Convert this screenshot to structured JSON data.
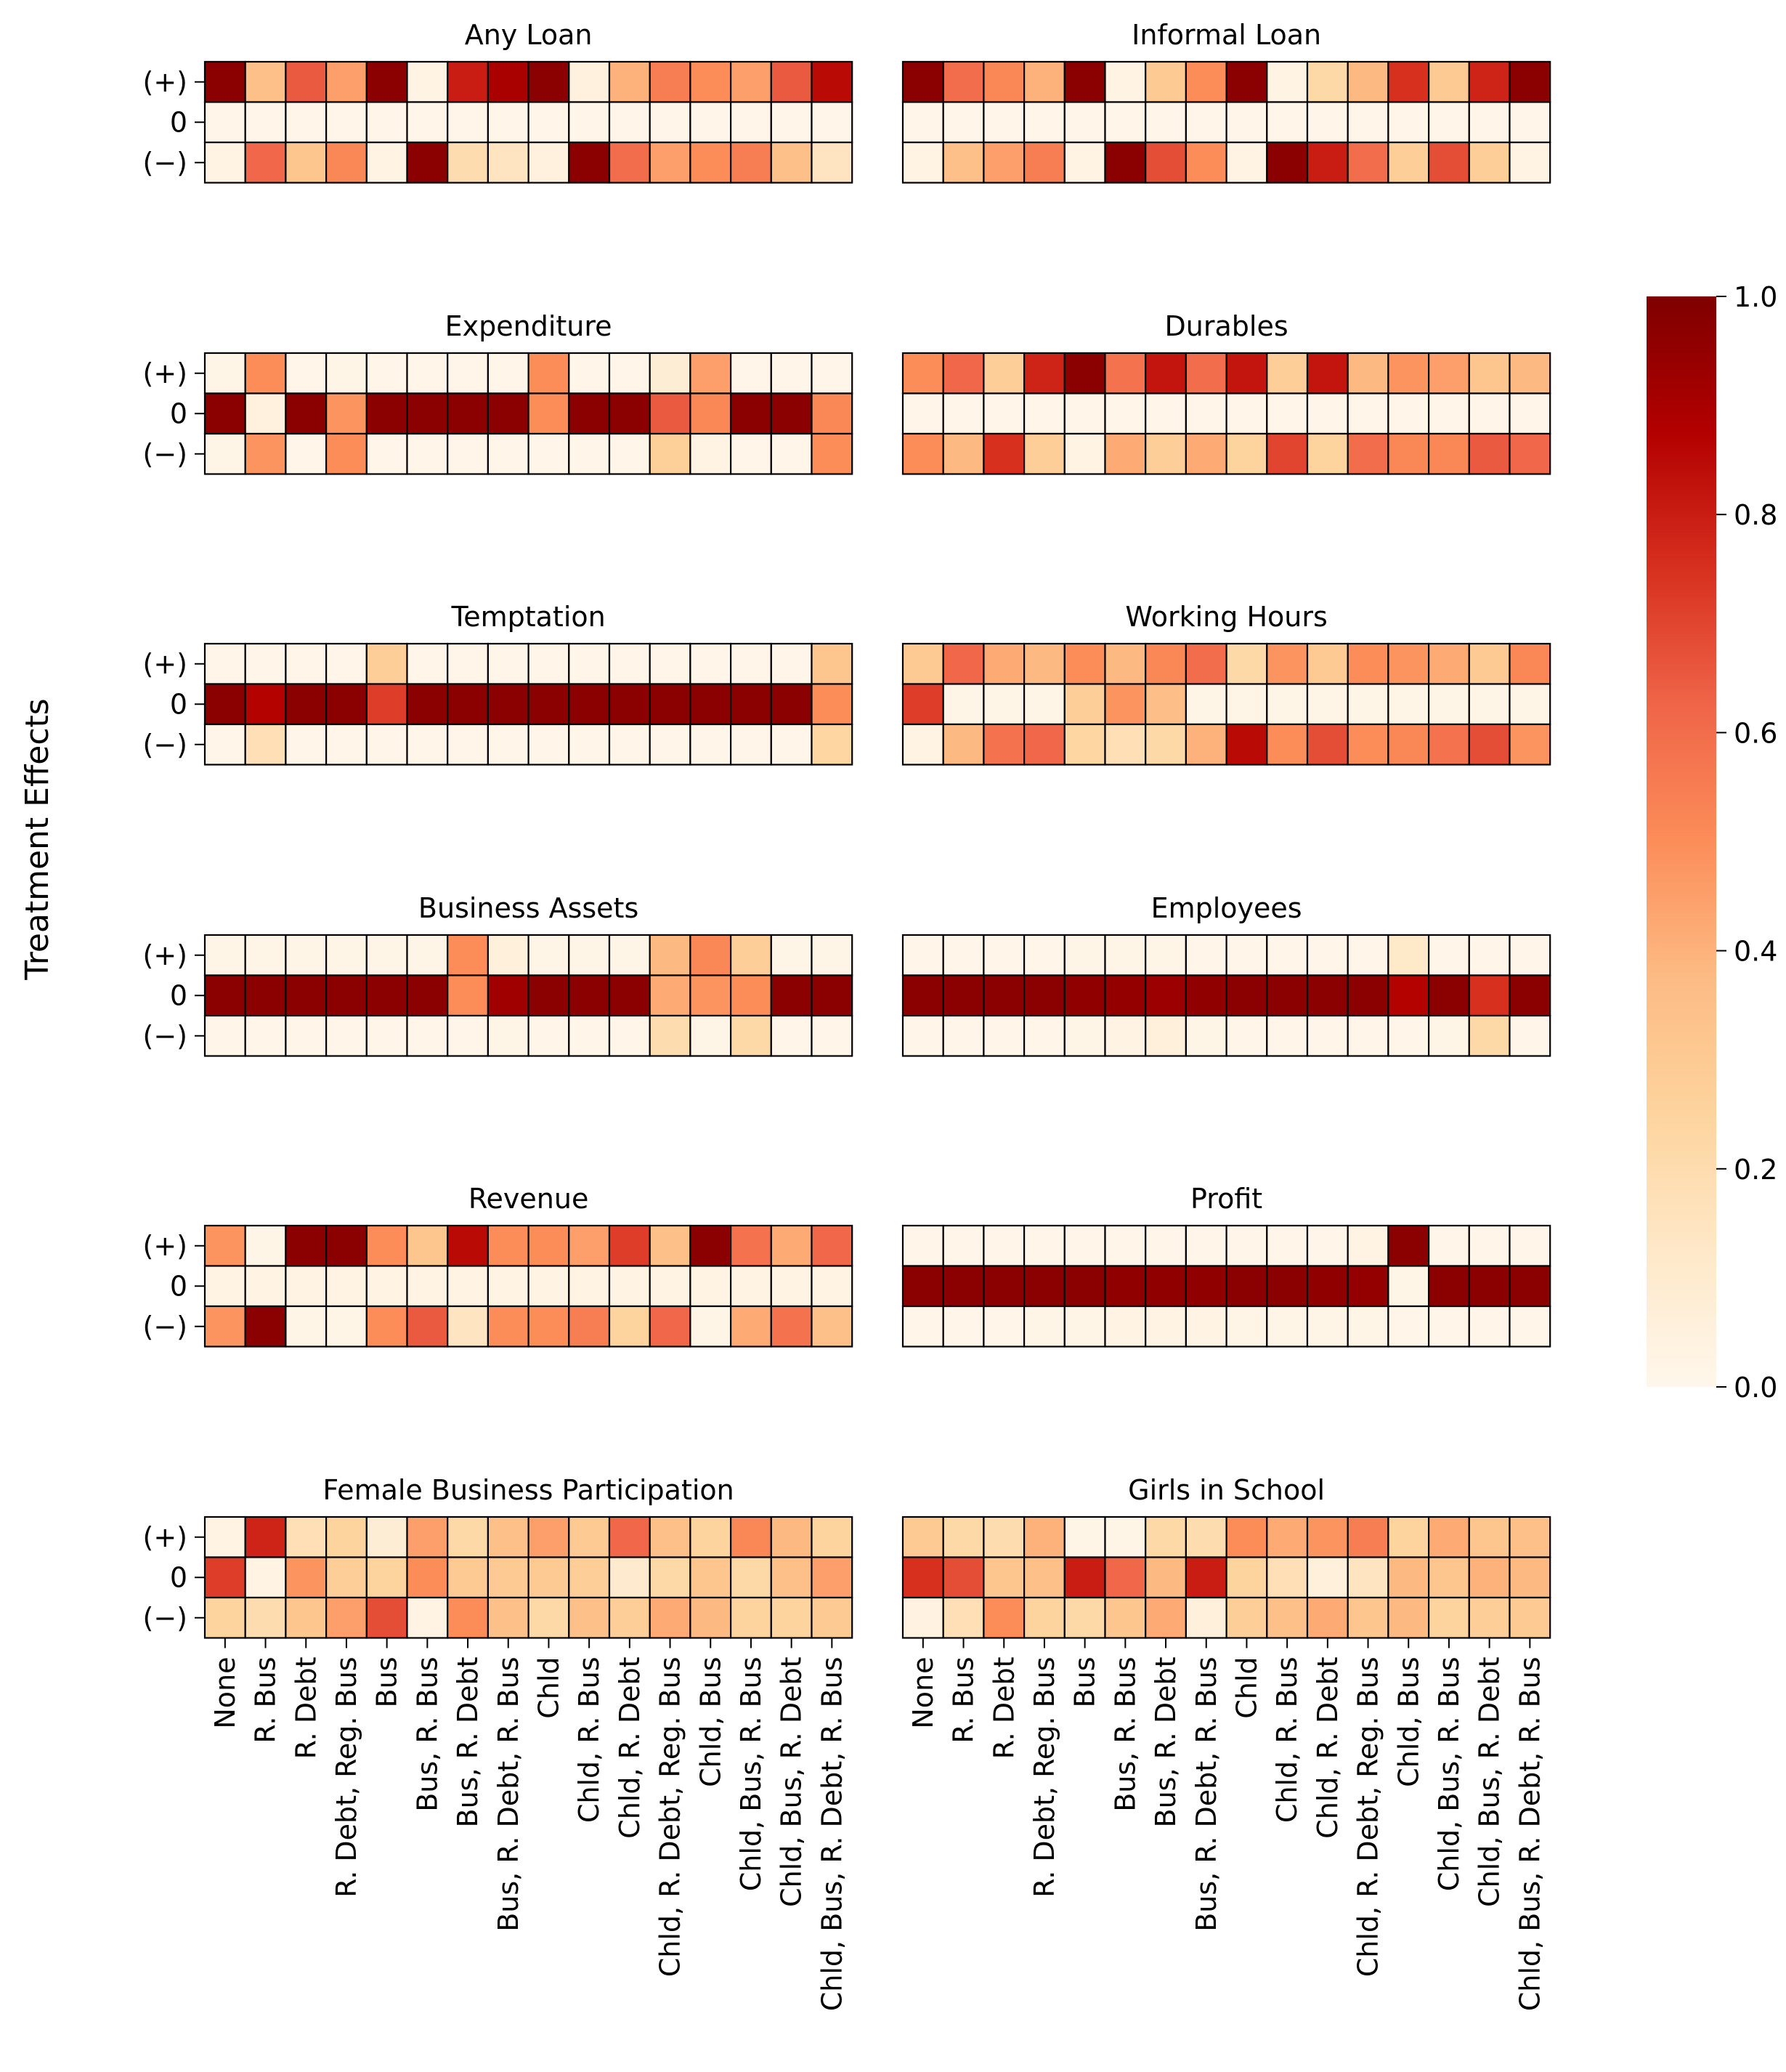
{
  "chart_data": {
    "type": "heatmap",
    "ylabel": "Treatment Effects",
    "row_labels": [
      "(+)",
      "0",
      "(−)"
    ],
    "categories": [
      "None",
      "R. Bus",
      "R. Debt",
      "R. Debt, Reg. Bus",
      "Bus",
      "Bus, R. Bus",
      "Bus, R. Debt",
      "Bus, R. Debt, R. Bus",
      "Chld",
      "Chld, R. Bus",
      "Chld, R. Debt",
      "Chld, R. Debt, Reg. Bus",
      "Chld, Bus",
      "Chld, Bus, R. Bus",
      "Chld, Bus, R. Debt",
      "Chld, Bus, R. Debt, R. Bus"
    ],
    "colorbar": {
      "range": [
        0,
        1
      ],
      "ticks": [
        "0.0",
        "0.2",
        "0.4",
        "0.6",
        "0.8",
        "1.0"
      ],
      "colormap": "OrRd",
      "stops": [
        "#fff7ec",
        "#fee8c8",
        "#fdd49e",
        "#fdbb84",
        "#fc8d59",
        "#ef6548",
        "#d7301f",
        "#b30000",
        "#7f0000"
      ]
    },
    "panels": [
      {
        "title": "Any Loan",
        "values": [
          [
            0.97,
            0.35,
            0.65,
            0.45,
            0.97,
            0.03,
            0.8,
            0.9,
            0.97,
            0.05,
            0.4,
            0.55,
            0.5,
            0.45,
            0.65,
            0.85
          ],
          [
            0.01,
            0.01,
            0.01,
            0.01,
            0.01,
            0.01,
            0.01,
            0.01,
            0.01,
            0.01,
            0.01,
            0.01,
            0.01,
            0.01,
            0.01,
            0.01
          ],
          [
            0.03,
            0.62,
            0.32,
            0.52,
            0.03,
            0.97,
            0.2,
            0.15,
            0.05,
            0.97,
            0.6,
            0.45,
            0.5,
            0.55,
            0.35,
            0.15
          ]
        ]
      },
      {
        "title": "Informal Loan",
        "values": [
          [
            0.97,
            0.6,
            0.52,
            0.4,
            0.97,
            0.03,
            0.3,
            0.5,
            0.97,
            0.03,
            0.22,
            0.38,
            0.75,
            0.3,
            0.78,
            0.97
          ],
          [
            0.01,
            0.01,
            0.01,
            0.01,
            0.01,
            0.01,
            0.01,
            0.01,
            0.01,
            0.01,
            0.01,
            0.01,
            0.01,
            0.01,
            0.01,
            0.01
          ],
          [
            0.03,
            0.35,
            0.45,
            0.55,
            0.03,
            0.97,
            0.68,
            0.5,
            0.03,
            0.97,
            0.8,
            0.6,
            0.28,
            0.68,
            0.28,
            0.03
          ]
        ]
      },
      {
        "title": "Expenditure",
        "values": [
          [
            0.02,
            0.5,
            0.01,
            0.02,
            0.01,
            0.01,
            0.01,
            0.01,
            0.5,
            0.01,
            0.01,
            0.08,
            0.45,
            0.01,
            0.01,
            0.01
          ],
          [
            0.97,
            0.05,
            0.97,
            0.48,
            0.97,
            0.97,
            0.97,
            0.97,
            0.5,
            0.97,
            0.97,
            0.65,
            0.52,
            0.97,
            0.97,
            0.52
          ],
          [
            0.02,
            0.48,
            0.01,
            0.5,
            0.01,
            0.01,
            0.01,
            0.01,
            0.01,
            0.01,
            0.01,
            0.27,
            0.03,
            0.01,
            0.01,
            0.5
          ]
        ]
      },
      {
        "title": "Durables",
        "values": [
          [
            0.5,
            0.62,
            0.28,
            0.78,
            0.97,
            0.58,
            0.82,
            0.6,
            0.82,
            0.28,
            0.82,
            0.38,
            0.48,
            0.45,
            0.32,
            0.38
          ],
          [
            0.01,
            0.01,
            0.01,
            0.01,
            0.01,
            0.01,
            0.01,
            0.01,
            0.01,
            0.01,
            0.01,
            0.01,
            0.01,
            0.01,
            0.01,
            0.01
          ],
          [
            0.5,
            0.38,
            0.75,
            0.28,
            0.03,
            0.42,
            0.28,
            0.42,
            0.25,
            0.7,
            0.25,
            0.6,
            0.52,
            0.52,
            0.65,
            0.62
          ]
        ]
      },
      {
        "title": "Temptation",
        "values": [
          [
            0.01,
            0.01,
            0.01,
            0.01,
            0.28,
            0.01,
            0.01,
            0.01,
            0.01,
            0.01,
            0.01,
            0.01,
            0.01,
            0.01,
            0.01,
            0.32
          ],
          [
            0.97,
            0.87,
            0.97,
            0.97,
            0.72,
            0.97,
            0.97,
            0.97,
            0.97,
            0.97,
            0.97,
            0.97,
            0.97,
            0.97,
            0.97,
            0.5
          ],
          [
            0.01,
            0.18,
            0.01,
            0.01,
            0.01,
            0.01,
            0.01,
            0.01,
            0.01,
            0.01,
            0.01,
            0.01,
            0.01,
            0.01,
            0.01,
            0.24
          ]
        ]
      },
      {
        "title": "Working Hours",
        "values": [
          [
            0.3,
            0.62,
            0.42,
            0.38,
            0.5,
            0.38,
            0.52,
            0.6,
            0.22,
            0.48,
            0.3,
            0.5,
            0.48,
            0.42,
            0.3,
            0.52
          ],
          [
            0.72,
            0.02,
            0.02,
            0.02,
            0.28,
            0.48,
            0.36,
            0.02,
            0.02,
            0.02,
            0.02,
            0.02,
            0.02,
            0.02,
            0.02,
            0.02
          ],
          [
            0.03,
            0.38,
            0.58,
            0.62,
            0.24,
            0.18,
            0.22,
            0.4,
            0.85,
            0.5,
            0.68,
            0.5,
            0.52,
            0.58,
            0.68,
            0.48
          ]
        ]
      },
      {
        "title": "Business Assets",
        "values": [
          [
            0.02,
            0.02,
            0.02,
            0.02,
            0.02,
            0.02,
            0.5,
            0.06,
            0.02,
            0.02,
            0.02,
            0.38,
            0.52,
            0.28,
            0.02,
            0.02
          ],
          [
            0.97,
            0.97,
            0.97,
            0.97,
            0.97,
            0.97,
            0.5,
            0.92,
            0.97,
            0.97,
            0.97,
            0.42,
            0.48,
            0.5,
            0.97,
            0.97
          ],
          [
            0.01,
            0.01,
            0.01,
            0.01,
            0.01,
            0.01,
            0.01,
            0.02,
            0.01,
            0.01,
            0.01,
            0.2,
            0.02,
            0.22,
            0.01,
            0.01
          ]
        ]
      },
      {
        "title": "Employees",
        "values": [
          [
            0.01,
            0.01,
            0.01,
            0.01,
            0.02,
            0.02,
            0.02,
            0.01,
            0.01,
            0.01,
            0.01,
            0.01,
            0.12,
            0.01,
            0.01,
            0.01
          ],
          [
            0.97,
            0.97,
            0.97,
            0.97,
            0.96,
            0.95,
            0.93,
            0.96,
            0.97,
            0.97,
            0.97,
            0.97,
            0.87,
            0.97,
            0.75,
            0.97
          ],
          [
            0.01,
            0.01,
            0.01,
            0.01,
            0.02,
            0.03,
            0.06,
            0.02,
            0.01,
            0.01,
            0.01,
            0.01,
            0.01,
            0.02,
            0.22,
            0.01
          ]
        ]
      },
      {
        "title": "Revenue",
        "values": [
          [
            0.48,
            0.02,
            0.97,
            0.97,
            0.5,
            0.32,
            0.85,
            0.5,
            0.5,
            0.45,
            0.72,
            0.35,
            0.97,
            0.58,
            0.42,
            0.62
          ],
          [
            0.03,
            0.03,
            0.03,
            0.03,
            0.03,
            0.03,
            0.03,
            0.03,
            0.03,
            0.03,
            0.03,
            0.03,
            0.03,
            0.03,
            0.03,
            0.03
          ],
          [
            0.48,
            0.97,
            0.02,
            0.02,
            0.5,
            0.65,
            0.15,
            0.5,
            0.5,
            0.55,
            0.25,
            0.62,
            0.02,
            0.42,
            0.58,
            0.35
          ]
        ]
      },
      {
        "title": "Profit",
        "values": [
          [
            0.01,
            0.01,
            0.01,
            0.01,
            0.01,
            0.01,
            0.01,
            0.01,
            0.01,
            0.01,
            0.01,
            0.03,
            0.97,
            0.01,
            0.01,
            0.01
          ],
          [
            0.97,
            0.97,
            0.97,
            0.97,
            0.97,
            0.96,
            0.96,
            0.96,
            0.97,
            0.97,
            0.96,
            0.95,
            0.02,
            0.97,
            0.97,
            0.97
          ],
          [
            0.01,
            0.01,
            0.01,
            0.02,
            0.02,
            0.03,
            0.03,
            0.03,
            0.02,
            0.02,
            0.02,
            0.02,
            0.01,
            0.01,
            0.01,
            0.01
          ]
        ]
      },
      {
        "title": "Female Business Participation",
        "values": [
          [
            0.03,
            0.78,
            0.18,
            0.25,
            0.08,
            0.45,
            0.22,
            0.35,
            0.45,
            0.3,
            0.62,
            0.35,
            0.25,
            0.52,
            0.38,
            0.25
          ],
          [
            0.72,
            0.03,
            0.48,
            0.28,
            0.25,
            0.5,
            0.3,
            0.3,
            0.3,
            0.28,
            0.1,
            0.22,
            0.32,
            0.22,
            0.35,
            0.45
          ],
          [
            0.25,
            0.2,
            0.32,
            0.45,
            0.68,
            0.03,
            0.5,
            0.35,
            0.22,
            0.35,
            0.28,
            0.42,
            0.38,
            0.25,
            0.25,
            0.3
          ]
        ]
      },
      {
        "title": "Girls in School",
        "values": [
          [
            0.3,
            0.22,
            0.2,
            0.4,
            0.02,
            0.02,
            0.22,
            0.2,
            0.5,
            0.42,
            0.48,
            0.55,
            0.25,
            0.42,
            0.32,
            0.35
          ],
          [
            0.75,
            0.68,
            0.32,
            0.35,
            0.8,
            0.62,
            0.38,
            0.8,
            0.25,
            0.18,
            0.06,
            0.15,
            0.38,
            0.32,
            0.4,
            0.38
          ],
          [
            0.04,
            0.18,
            0.5,
            0.25,
            0.22,
            0.32,
            0.42,
            0.06,
            0.28,
            0.35,
            0.42,
            0.32,
            0.38,
            0.25,
            0.28,
            0.3
          ]
        ]
      }
    ]
  }
}
